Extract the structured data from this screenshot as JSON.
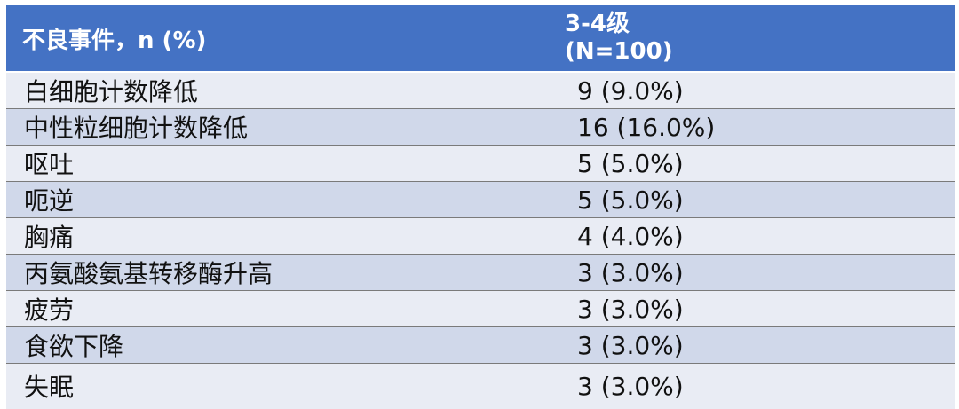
{
  "table": {
    "header": {
      "col1": "不良事件，n (%)",
      "col2_line1": "3-4级",
      "col2_line2": "(N=100)"
    },
    "rows": [
      {
        "event": "白细胞计数降低",
        "value": "9 (9.0%)"
      },
      {
        "event": "中性粒细胞计数降低",
        "value": "16 (16.0%)"
      },
      {
        "event": "呕吐",
        "value": "5 (5.0%)"
      },
      {
        "event": "呃逆",
        "value": "5 (5.0%)"
      },
      {
        "event": "胸痛",
        "value": "4 (4.0%)"
      },
      {
        "event": "丙氨酸氨基转移酶升高",
        "value": "3 (3.0%)"
      },
      {
        "event": "疲劳",
        "value": "3 (3.0%)"
      },
      {
        "event": "食欲下降",
        "value": "3 (3.0%)"
      },
      {
        "event": "失眠",
        "value": "3 (3.0%)"
      }
    ],
    "colors": {
      "header_bg": "#4472c4",
      "row_light": "#e9ecf4",
      "row_dark": "#d0d8ea"
    }
  }
}
